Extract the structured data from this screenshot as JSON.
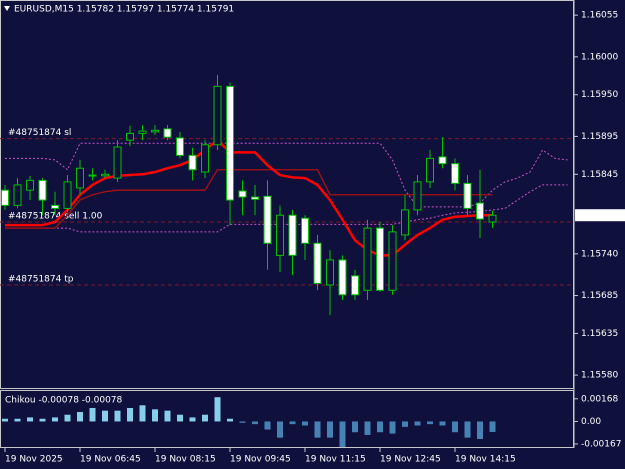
{
  "chart_data": [
    {
      "type": "candlestick",
      "title": "EURUSD,M15 1.15782 1.15797 1.15774 1.15791",
      "categories": [
        "19 Nov 2025",
        null,
        null,
        null,
        null,
        null,
        "19 Nov 06:45",
        null,
        null,
        null,
        null,
        null,
        "19 Nov 08:15",
        null,
        null,
        null,
        null,
        null,
        "19 Nov 09:45",
        null,
        null,
        null,
        null,
        null,
        "19 Nov 11:15",
        null,
        null,
        null,
        null,
        null,
        "19 Nov 12:45",
        null,
        null,
        null,
        null,
        null,
        "19 Nov 14:15",
        null,
        null,
        null,
        null,
        null,
        null,
        null,
        null,
        null
      ],
      "open": [
        1.15824,
        1.15804,
        1.15824,
        1.15837,
        1.15804,
        1.158,
        1.15827,
        1.15843,
        1.15843,
        1.1584,
        1.1589,
        1.15899,
        1.15901,
        1.15905,
        1.15893,
        1.1587,
        1.15848,
        1.15884,
        1.15961,
        1.15823,
        1.15815,
        1.15816,
        1.15738,
        1.15791,
        1.15787,
        1.15754,
        1.15699,
        1.15732,
        1.15711,
        1.15692,
        1.15774,
        1.15692,
        1.15765,
        1.15798,
        1.15835,
        1.15868,
        1.15859,
        1.15833,
        1.15807,
        1.15782,
        null,
        null,
        null,
        null,
        null,
        null
      ],
      "high": [
        1.15831,
        1.1584,
        1.15843,
        1.1584,
        1.15822,
        1.15844,
        1.15864,
        1.15853,
        1.15851,
        1.1589,
        1.15909,
        1.1591,
        1.1591,
        1.1591,
        1.15901,
        1.1588,
        1.1589,
        1.15976,
        1.15966,
        1.15837,
        1.15831,
        1.15837,
        1.15804,
        1.15798,
        1.15791,
        1.15765,
        1.15745,
        1.15738,
        1.15719,
        1.15785,
        1.15782,
        1.15778,
        1.15818,
        1.15844,
        1.15877,
        1.15894,
        1.15866,
        1.15844,
        1.15851,
        1.15797,
        null,
        null,
        null,
        null,
        null,
        null
      ],
      "low": [
        1.15798,
        1.158,
        1.15811,
        1.15791,
        1.15791,
        1.15795,
        1.15818,
        1.15837,
        1.1584,
        1.15835,
        1.15882,
        1.1589,
        1.15897,
        1.1589,
        1.15866,
        1.15837,
        1.1584,
        1.15877,
        1.15778,
        1.15791,
        1.15791,
        1.15719,
        1.15716,
        1.15712,
        1.15732,
        1.15692,
        1.15659,
        1.15679,
        1.15679,
        1.15679,
        1.1569,
        1.15686,
        1.15758,
        1.15791,
        1.15827,
        1.15853,
        1.15824,
        1.15791,
        1.15761,
        1.15774,
        null,
        null,
        null,
        null,
        null,
        null
      ],
      "close": [
        1.15804,
        1.15831,
        1.15837,
        1.15811,
        1.158,
        1.15835,
        1.15853,
        1.15844,
        1.15845,
        1.15881,
        1.15899,
        1.15902,
        1.15903,
        1.15894,
        1.1587,
        1.15851,
        1.15884,
        1.15961,
        1.15811,
        1.15815,
        1.15812,
        1.15754,
        1.15791,
        1.15738,
        1.15754,
        1.15701,
        1.15732,
        1.15686,
        1.15686,
        1.15774,
        1.15692,
        1.15769,
        1.15798,
        1.15835,
        1.15866,
        1.15859,
        1.15833,
        1.158,
        1.15786,
        1.15791,
        null,
        null,
        null,
        null,
        null,
        null
      ],
      "bull_color": "#00c000",
      "bear_fill": "#ffffff",
      "lines": [
        {
          "color": "#cc55cc",
          "width": 1,
          "dash": "2 2",
          "values": [
            1.15866,
            1.15866,
            1.15866,
            1.15866,
            1.15864,
            1.15851,
            1.15886,
            1.15886,
            1.15886,
            1.15886,
            1.15886,
            1.15886,
            1.15886,
            1.15886,
            1.15886,
            1.15886,
            1.15886,
            1.15886,
            1.15886,
            1.15886,
            1.15886,
            1.15886,
            1.15886,
            1.15886,
            1.15886,
            1.15886,
            1.15886,
            1.15886,
            1.15886,
            1.15886,
            1.15886,
            1.15864,
            1.15824,
            1.15802,
            1.15802,
            1.15802,
            1.15802,
            1.15802,
            1.15807,
            1.15824,
            1.15835,
            1.1584,
            1.15848,
            1.15877,
            1.15866,
            1.15864
          ]
        },
        {
          "color": "#cc55cc",
          "width": 1,
          "dash": "2 2",
          "values": [
            1.15774,
            1.15774,
            1.15774,
            1.15774,
            1.15774,
            1.15774,
            1.15769,
            1.15769,
            1.15769,
            1.15769,
            1.15769,
            1.15769,
            1.15769,
            1.15769,
            1.15769,
            1.15769,
            1.15769,
            1.15769,
            1.15779,
            1.15779,
            1.15779,
            1.15779,
            1.15779,
            1.15779,
            1.15779,
            1.15779,
            1.15779,
            1.15779,
            1.15779,
            1.15779,
            1.15779,
            1.15779,
            1.15782,
            1.15785,
            1.15787,
            1.15791,
            1.15794,
            1.15795,
            1.15796,
            1.15798,
            1.158,
            1.15811,
            1.15822,
            1.15831,
            1.15831,
            1.15831
          ]
        },
        {
          "color": "#aa1111",
          "width": 1.3,
          "dash": "none",
          "values": [
            1.15774,
            1.15774,
            1.15774,
            1.15774,
            1.15774,
            1.15791,
            1.15811,
            1.15818,
            1.15822,
            1.15824,
            1.15824,
            1.15824,
            1.15824,
            1.15824,
            1.15824,
            1.15824,
            1.15824,
            1.15851,
            1.15851,
            1.15851,
            1.15851,
            1.15851,
            1.15851,
            1.15851,
            1.15851,
            1.15851,
            1.15818,
            1.15818,
            1.15818,
            1.15818,
            1.15818,
            1.15818,
            1.15818,
            1.15818,
            1.15818,
            1.15818,
            1.15818,
            1.15818,
            1.15818,
            1.15818,
            null,
            null,
            null,
            null,
            null,
            null
          ]
        },
        {
          "color": "#ff0000",
          "width": 2.5,
          "dash": "none",
          "values": [
            1.15778,
            1.15778,
            1.15778,
            1.15778,
            1.15782,
            1.15798,
            1.15818,
            1.15831,
            1.1584,
            1.15843,
            1.15844,
            1.15845,
            1.15848,
            1.15853,
            1.15857,
            1.15864,
            1.15877,
            1.1589,
            1.15874,
            1.15874,
            1.15874,
            1.15857,
            1.15844,
            1.15841,
            1.1584,
            1.15831,
            1.15811,
            1.15785,
            1.15758,
            1.15745,
            1.15738,
            1.15738,
            1.15752,
            1.15765,
            1.15774,
            1.15785,
            1.15789,
            1.1579,
            1.15791,
            1.15791,
            null,
            null,
            null,
            null,
            null,
            null
          ]
        }
      ],
      "order_lines": [
        {
          "label": "#48751874 sl",
          "value": 1.15892
        },
        {
          "label": "#48751874 sell 1.00",
          "value": 1.15782
        },
        {
          "label": "#48751874 tp",
          "value": 1.15699
        }
      ],
      "order_color": "#7a1a2a",
      "ylim": [
        1.15563,
        1.16075
      ],
      "yticks": [
        1.16055,
        {
          "value": 1.16,
          "label": "1.16000"
        },
        {
          "value": 1.1595,
          "label": "1.15950"
        },
        1.15895,
        1.15845,
        {
          "value": 1.1574,
          "label": "1.15740"
        },
        1.15685,
        1.15635,
        {
          "value": 1.1558,
          "label": "1.15580"
        }
      ]
    },
    {
      "type": "bar",
      "title": "Chikou -0.00078 -0.00078",
      "values": [
        0.0002,
        0.0002,
        0.0003,
        0.0002,
        0.0003,
        0.0005,
        0.0007,
        0.001,
        0.0008,
        0.0008,
        0.001,
        0.0012,
        0.0009,
        0.0008,
        0.0005,
        0.0003,
        0.0005,
        0.0018,
        0.0002,
        -0.0001,
        -0.0002,
        -0.0006,
        -0.0012,
        -0.0002,
        -0.0003,
        -0.0012,
        -0.0012,
        -0.0019,
        -0.0008,
        -0.001,
        -0.0008,
        -0.0009,
        -0.0004,
        -0.0003,
        -0.0002,
        -0.0003,
        -0.0008,
        -0.0012,
        -0.0013,
        -0.00078,
        null,
        null,
        null,
        null,
        null,
        null
      ],
      "pos_color": "#87ceeb",
      "neg_color": "#4682b4",
      "ylim": [
        -0.00197,
        0.00226
      ],
      "yticks": [
        0.00168,
        {
          "value": 0,
          "label": "0.00"
        },
        -0.00167
      ]
    }
  ]
}
